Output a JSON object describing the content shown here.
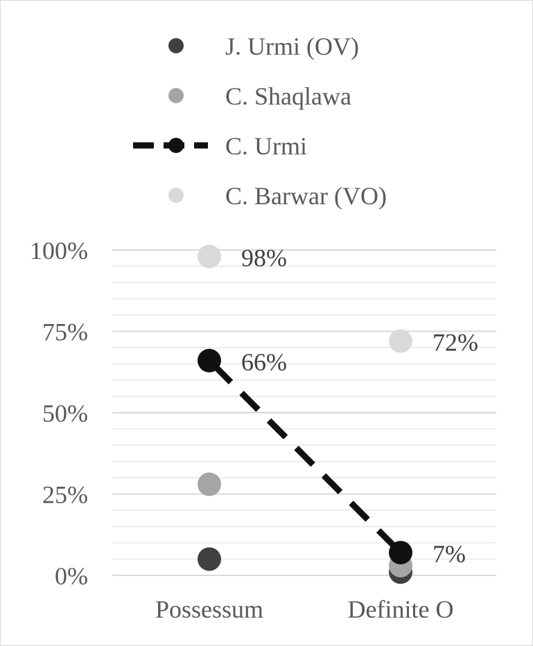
{
  "chart_data": {
    "type": "scatter",
    "categories": [
      "Possessum",
      "Definite O"
    ],
    "ylim": [
      0,
      100
    ],
    "yticks": [
      "0%",
      "25%",
      "50%",
      "75%",
      "100%"
    ],
    "minor_step": 5,
    "major_step": 25,
    "grid": true,
    "legend_position": "top",
    "series": [
      {
        "name": "J. Urmi (OV)",
        "values": [
          5,
          1
        ],
        "color": "#404040",
        "line": false,
        "labels": [
          "",
          ""
        ]
      },
      {
        "name": "C. Shaqlawa",
        "values": [
          28,
          3
        ],
        "color": "#a6a4a4",
        "line": false,
        "labels": [
          "",
          ""
        ]
      },
      {
        "name": "C. Urmi",
        "values": [
          66,
          7
        ],
        "color": "#111111",
        "line": true,
        "labels": [
          "66%",
          "7%"
        ]
      },
      {
        "name": "C. Barwar (VO)",
        "values": [
          98,
          72
        ],
        "color": "#d9d9d9",
        "line": false,
        "labels": [
          "98%",
          "72%"
        ]
      }
    ]
  }
}
